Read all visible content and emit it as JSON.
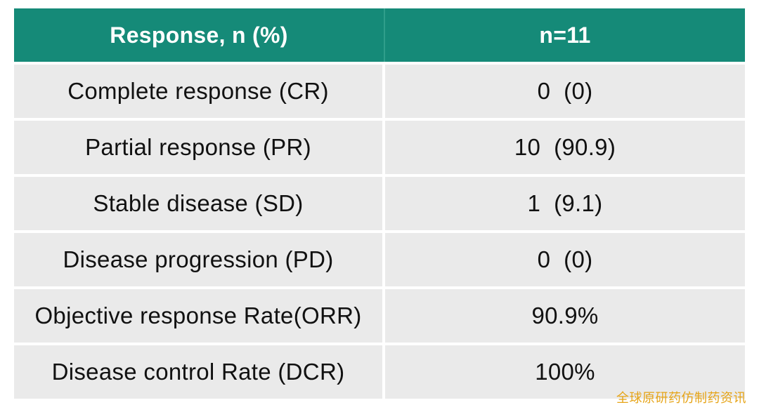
{
  "table": {
    "headers": [
      "Response, n (%)",
      "n=11"
    ],
    "rows": [
      {
        "label": "Complete response (CR)",
        "value": "0  (0)"
      },
      {
        "label": "Partial response (PR)",
        "value": "10  (90.9)"
      },
      {
        "label": "Stable disease (SD)",
        "value": "1  (9.1)"
      },
      {
        "label": "Disease progression (PD)",
        "value": "0  (0)"
      },
      {
        "label": "Objective response Rate(ORR)",
        "value": "90.9%"
      },
      {
        "label": "Disease control Rate (DCR)",
        "value": "100%"
      }
    ]
  },
  "watermark": "全球原研药仿制药资讯",
  "colors": {
    "header_bg": "#158a78",
    "row_bg": "#eaeaea",
    "watermark": "#e6a417"
  }
}
